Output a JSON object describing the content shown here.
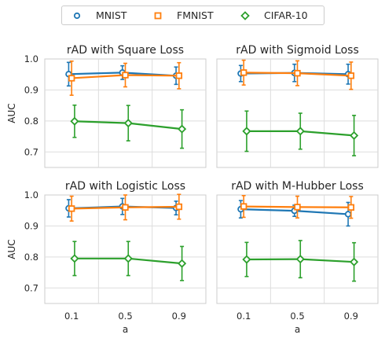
{
  "legend": {
    "items": [
      {
        "label": "MNIST",
        "color": "#1f77b4",
        "marker": "circle"
      },
      {
        "label": "FMNIST",
        "color": "#ff7f0e",
        "marker": "square"
      },
      {
        "label": "CIFAR-10",
        "color": "#2ca02c",
        "marker": "diamond"
      }
    ]
  },
  "chart_data": [
    {
      "type": "line",
      "title": "rAD with Square Loss",
      "xlabel": "",
      "ylabel": "AUC",
      "categories": [
        "0.1",
        "0.5",
        "0.9"
      ],
      "ylim": [
        0.65,
        1.0
      ],
      "yticks": [
        "1.0",
        "0.9",
        "0.8",
        "0.7"
      ],
      "show_xticks": false,
      "show_yticks": true,
      "series": [
        {
          "name": "MNIST",
          "values": [
            0.951,
            0.956,
            0.946
          ],
          "err": [
            0.038,
            0.022,
            0.028
          ]
        },
        {
          "name": "FMNIST",
          "values": [
            0.938,
            0.948,
            0.946
          ],
          "err": [
            0.055,
            0.038,
            0.042
          ]
        },
        {
          "name": "CIFAR-10",
          "values": [
            0.799,
            0.793,
            0.774
          ],
          "err": [
            0.052,
            0.057,
            0.062
          ]
        }
      ]
    },
    {
      "type": "line",
      "title": "rAD with Sigmoid Loss",
      "xlabel": "",
      "ylabel": "",
      "categories": [
        "0.1",
        "0.5",
        "0.9"
      ],
      "ylim": [
        0.65,
        1.0
      ],
      "yticks": [],
      "show_xticks": false,
      "show_yticks": false,
      "series": [
        {
          "name": "MNIST",
          "values": [
            0.953,
            0.955,
            0.951
          ],
          "err": [
            0.026,
            0.028,
            0.032
          ]
        },
        {
          "name": "FMNIST",
          "values": [
            0.956,
            0.954,
            0.946
          ],
          "err": [
            0.04,
            0.04,
            0.044
          ]
        },
        {
          "name": "CIFAR-10",
          "values": [
            0.767,
            0.767,
            0.753
          ],
          "err": [
            0.065,
            0.058,
            0.065
          ]
        }
      ]
    },
    {
      "type": "line",
      "title": "rAD with Logistic Loss",
      "xlabel": "a",
      "ylabel": "AUC",
      "categories": [
        "0.1",
        "0.5",
        "0.9"
      ],
      "ylim": [
        0.65,
        1.0
      ],
      "yticks": [
        "1.0",
        "0.9",
        "0.8",
        "0.7"
      ],
      "show_xticks": true,
      "show_yticks": true,
      "series": [
        {
          "name": "MNIST",
          "values": [
            0.957,
            0.963,
            0.958
          ],
          "err": [
            0.028,
            0.026,
            0.022
          ]
        },
        {
          "name": "FMNIST",
          "values": [
            0.956,
            0.96,
            0.962
          ],
          "err": [
            0.04,
            0.04,
            0.04
          ]
        },
        {
          "name": "CIFAR-10",
          "values": [
            0.795,
            0.795,
            0.779
          ],
          "err": [
            0.055,
            0.055,
            0.055
          ]
        }
      ]
    },
    {
      "type": "line",
      "title": "rAD with M-Hubber Loss",
      "xlabel": "a",
      "ylabel": "",
      "categories": [
        "0.1",
        "0.5",
        "0.9"
      ],
      "ylim": [
        0.65,
        1.0
      ],
      "yticks": [],
      "show_xticks": true,
      "show_yticks": false,
      "series": [
        {
          "name": "MNIST",
          "values": [
            0.954,
            0.949,
            0.938
          ],
          "err": [
            0.028,
            0.018,
            0.038
          ]
        },
        {
          "name": "FMNIST",
          "values": [
            0.963,
            0.961,
            0.96
          ],
          "err": [
            0.035,
            0.035,
            0.035
          ]
        },
        {
          "name": "CIFAR-10",
          "values": [
            0.792,
            0.793,
            0.784
          ],
          "err": [
            0.055,
            0.06,
            0.062
          ]
        }
      ]
    }
  ]
}
